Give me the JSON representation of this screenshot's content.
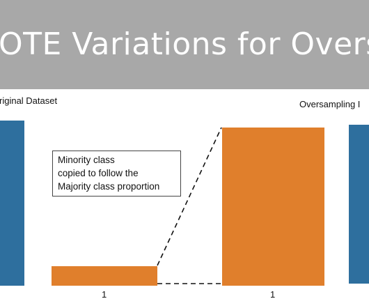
{
  "banner": {
    "title": "OTE Variations for Oversam"
  },
  "left_panel": {
    "label": "riginal Dataset",
    "tick": "1"
  },
  "right_panel": {
    "label": "Oversampling I",
    "tick": "1"
  },
  "annotation": {
    "lines": [
      "Minority class",
      "copied to follow the",
      "Majority class proportion"
    ]
  },
  "colors": {
    "majority": "#2e6f9e",
    "minority": "#e07f2c",
    "banner": "#a8a8a8"
  }
}
